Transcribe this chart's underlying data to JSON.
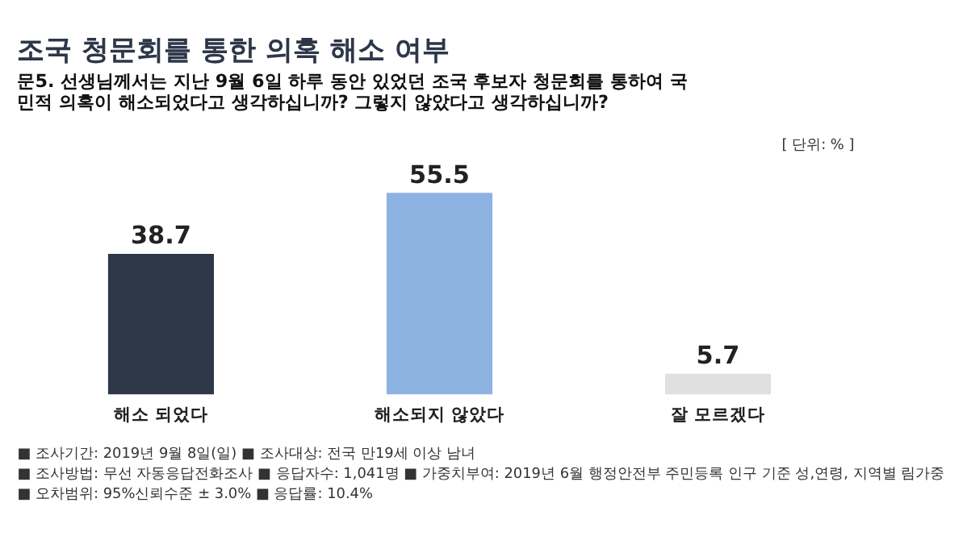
{
  "chart_data": {
    "type": "bar",
    "title": "조국 청문회를 통한 의혹 해소 여부",
    "subtitle": [
      "문5. 선생님께서는 지난 9월 6일 하루 동안 있었던 조국 후보자 청문회를 통하여 국",
      "민적 의혹이 해소되었다고 생각하십니까? 그렇지 않았다고 생각하십니까?"
    ],
    "categories": [
      "해소 되었다",
      "해소되지 않았다",
      "잘 모르겠다"
    ],
    "values": [
      38.7,
      55.5,
      5.7
    ],
    "colors": [
      "#2d3748",
      "#8db3e2",
      "#e0e0e0"
    ],
    "data_labels": true,
    "annotations": [
      "[ 단위: % ]",
      "■ 조사기간: 2019년 9월 8일(일)  ■ 조사대상: 전국 만19세 이상 남녀",
      "■ 조사방법: 무선 자동응답전화조사  ■ 응답자수: 1,041명  ■ 가중치부여: 2019년 6월 행정안전부 주민등록 인구 기준 성,연령, 지역별 림가중",
      "■ 오차범위: 95%신뢰수준 ± 3.0%  ■ 응답률: 10.4%"
    ]
  }
}
